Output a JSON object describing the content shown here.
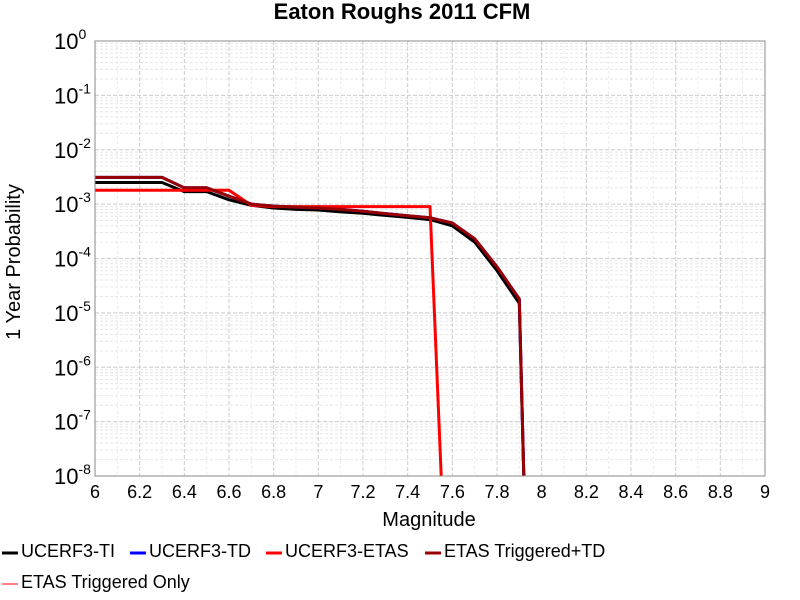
{
  "chart_data": {
    "type": "line",
    "title": "Eaton Roughs 2011 CFM",
    "xlabel": "Magnitude",
    "ylabel": "1 Year Probability",
    "xlim": [
      6,
      9
    ],
    "ylim": [
      1e-08,
      1
    ],
    "yscale": "log",
    "grid": true,
    "legend_position": "bottom",
    "x_ticks": [
      "6",
      "6.2",
      "6.4",
      "6.6",
      "6.8",
      "7",
      "7.2",
      "7.4",
      "7.6",
      "7.8",
      "8",
      "8.2",
      "8.4",
      "8.6",
      "8.8",
      "9"
    ],
    "y_ticks": [
      {
        "base": "10",
        "exp": "0"
      },
      {
        "base": "10",
        "exp": "-1"
      },
      {
        "base": "10",
        "exp": "-2"
      },
      {
        "base": "10",
        "exp": "-3"
      },
      {
        "base": "10",
        "exp": "-4"
      },
      {
        "base": "10",
        "exp": "-5"
      },
      {
        "base": "10",
        "exp": "-6"
      },
      {
        "base": "10",
        "exp": "-7"
      },
      {
        "base": "10",
        "exp": "-8"
      }
    ],
    "series": [
      {
        "name": "UCERF3-TI",
        "color": "#000000",
        "x": [
          6.0,
          6.1,
          6.2,
          6.3,
          6.4,
          6.5,
          6.6,
          6.7,
          6.8,
          6.9,
          7.0,
          7.1,
          7.2,
          7.3,
          7.4,
          7.5,
          7.6,
          7.7,
          7.8,
          7.9,
          7.92
        ],
        "y": [
          0.0025,
          0.0025,
          0.0025,
          0.0025,
          0.0017,
          0.0017,
          0.0012,
          0.00095,
          0.00085,
          0.0008,
          0.00078,
          0.00072,
          0.00068,
          0.00062,
          0.00057,
          0.00052,
          0.0004,
          0.0002,
          6e-05,
          1.5e-05,
          1e-08
        ]
      },
      {
        "name": "UCERF3-TD",
        "color": "#0000ff",
        "x": [
          6.0,
          6.1,
          6.2,
          6.3,
          6.4,
          6.5,
          6.6,
          6.7,
          6.8,
          6.9,
          7.0,
          7.1,
          7.2,
          7.3,
          7.4,
          7.5,
          7.6,
          7.7,
          7.8,
          7.9,
          7.92
        ],
        "y": [
          0.0031,
          0.0031,
          0.0031,
          0.0031,
          0.002,
          0.002,
          0.0014,
          0.001,
          0.00092,
          0.00088,
          0.00085,
          0.0008,
          0.00074,
          0.00067,
          0.00061,
          0.00056,
          0.00045,
          0.00023,
          7e-05,
          1.8e-05,
          1e-08
        ]
      },
      {
        "name": "UCERF3-ETAS",
        "color": "#ff0000",
        "x": [
          6.0,
          6.1,
          6.2,
          6.3,
          6.4,
          6.5,
          6.6,
          6.7,
          6.8,
          6.9,
          7.0,
          7.1,
          7.2,
          7.3,
          7.4,
          7.5,
          7.55
        ],
        "y": [
          0.0018,
          0.0018,
          0.0018,
          0.0018,
          0.0018,
          0.0018,
          0.0018,
          0.00095,
          0.0009,
          0.0009,
          0.0009,
          0.0009,
          0.0009,
          0.0009,
          0.0009,
          0.0009,
          1e-08
        ]
      },
      {
        "name": "ETAS Triggered+TD",
        "color": "#990000",
        "x": [
          6.0,
          6.1,
          6.2,
          6.3,
          6.4,
          6.5,
          6.6,
          6.7,
          6.8,
          6.9,
          7.0,
          7.1,
          7.2,
          7.3,
          7.4,
          7.5,
          7.6,
          7.7,
          7.8,
          7.9,
          7.92
        ],
        "y": [
          0.0031,
          0.0031,
          0.0031,
          0.0031,
          0.002,
          0.002,
          0.0014,
          0.001,
          0.00092,
          0.00088,
          0.00085,
          0.0008,
          0.00074,
          0.00067,
          0.00061,
          0.00056,
          0.00045,
          0.00023,
          7e-05,
          1.8e-05,
          1e-08
        ]
      },
      {
        "name": "ETAS Triggered Only",
        "color": "#ff8080",
        "x": [],
        "y": []
      }
    ]
  }
}
